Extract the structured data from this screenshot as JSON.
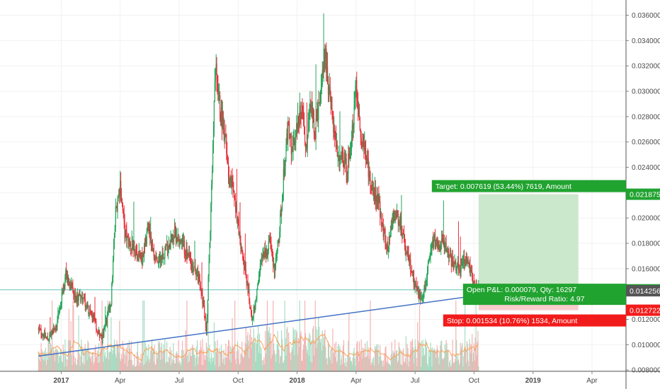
{
  "chart_data": {
    "type": "candlestick",
    "y_ticks": [
      "0.036000",
      "0.034000",
      "0.032000",
      "0.030000",
      "0.028000",
      "0.026000",
      "0.024000",
      "0.022000",
      "0.020000",
      "0.018000",
      "0.016000",
      "0.014000",
      "0.012000",
      "0.010000",
      "0.008000"
    ],
    "ylim": [
      0.0079,
      0.0372
    ],
    "x_ticks": [
      {
        "label": "2017",
        "bold": true,
        "t": 0
      },
      {
        "label": "Apr",
        "bold": false,
        "t": 13
      },
      {
        "label": "Jul",
        "bold": false,
        "t": 26
      },
      {
        "label": "Oct",
        "bold": false,
        "t": 39
      },
      {
        "label": "2018",
        "bold": true,
        "t": 52
      },
      {
        "label": "Apr",
        "bold": false,
        "t": 65
      },
      {
        "label": "Jul",
        "bold": false,
        "t": 78
      },
      {
        "label": "Oct",
        "bold": false,
        "t": 91
      },
      {
        "label": "2019",
        "bold": true,
        "t": 104
      },
      {
        "label": "Apr",
        "bold": false,
        "t": 117
      }
    ],
    "t_range": [
      -6,
      122
    ],
    "key_points": [
      [
        -5,
        0.0112
      ],
      [
        -3,
        0.0104
      ],
      [
        -1,
        0.0114
      ],
      [
        1,
        0.0155
      ],
      [
        3,
        0.0138
      ],
      [
        5,
        0.0136
      ],
      [
        7,
        0.012
      ],
      [
        9,
        0.0104
      ],
      [
        11,
        0.0135
      ],
      [
        12,
        0.0205
      ],
      [
        13,
        0.0228
      ],
      [
        14,
        0.0188
      ],
      [
        16,
        0.0172
      ],
      [
        18,
        0.0168
      ],
      [
        19,
        0.019
      ],
      [
        21,
        0.0165
      ],
      [
        23,
        0.0175
      ],
      [
        25,
        0.0188
      ],
      [
        27,
        0.0178
      ],
      [
        28,
        0.0168
      ],
      [
        30,
        0.0155
      ],
      [
        31,
        0.014
      ],
      [
        32,
        0.0112
      ],
      [
        33,
        0.0205
      ],
      [
        34,
        0.0318
      ],
      [
        35,
        0.0285
      ],
      [
        36,
        0.027
      ],
      [
        37,
        0.0232
      ],
      [
        38,
        0.022
      ],
      [
        39,
        0.0195
      ],
      [
        40,
        0.017
      ],
      [
        41,
        0.0148
      ],
      [
        42,
        0.012
      ],
      [
        43,
        0.0135
      ],
      [
        44,
        0.0165
      ],
      [
        46,
        0.018
      ],
      [
        47,
        0.0158
      ],
      [
        48,
        0.0185
      ],
      [
        49,
        0.0232
      ],
      [
        50,
        0.0272
      ],
      [
        51,
        0.025
      ],
      [
        52,
        0.0275
      ],
      [
        53,
        0.0285
      ],
      [
        54,
        0.0258
      ],
      [
        55,
        0.0288
      ],
      [
        56,
        0.027
      ],
      [
        57,
        0.029
      ],
      [
        58,
        0.0335
      ],
      [
        59,
        0.03
      ],
      [
        60,
        0.027
      ],
      [
        61,
        0.0245
      ],
      [
        62,
        0.025
      ],
      [
        63,
        0.0238
      ],
      [
        64,
        0.0265
      ],
      [
        65,
        0.0305
      ],
      [
        66,
        0.0268
      ],
      [
        67,
        0.025
      ],
      [
        68,
        0.0232
      ],
      [
        69,
        0.0222
      ],
      [
        70,
        0.021
      ],
      [
        71,
        0.019
      ],
      [
        72,
        0.0175
      ],
      [
        73,
        0.0195
      ],
      [
        74,
        0.0205
      ],
      [
        75,
        0.019
      ],
      [
        76,
        0.0172
      ],
      [
        77,
        0.0162
      ],
      [
        78,
        0.0148
      ],
      [
        79,
        0.0138
      ],
      [
        80,
        0.0142
      ],
      [
        81,
        0.0162
      ],
      [
        82,
        0.0182
      ],
      [
        83,
        0.0178
      ],
      [
        84,
        0.018
      ],
      [
        85,
        0.0175
      ],
      [
        86,
        0.0165
      ],
      [
        87,
        0.0162
      ],
      [
        88,
        0.016
      ],
      [
        89,
        0.017
      ],
      [
        90,
        0.016
      ],
      [
        91,
        0.0145
      ],
      [
        92,
        0.0143
      ]
    ],
    "trendline": {
      "from": [
        -5,
        0.0091
      ],
      "to": [
        92,
        0.0139
      ],
      "color": "#4472c4"
    },
    "current_price": {
      "value": 0.014335,
      "label": "0.014335",
      "color": "#26a69a"
    },
    "entry_price": {
      "value": 0.014256,
      "label": "0.014256"
    },
    "position": {
      "type": "long",
      "t_start": 92,
      "t_end": 114,
      "entry": 0.014256,
      "target": 0.021875,
      "stop": 0.012722,
      "target_price_label": "0.021875",
      "stop_price_label": "0.012722",
      "target_text": "Target: 0.007619 (53.44%) 7619, Amount",
      "pnl_text": "Open P&L: 0.000079, Qty: 16297",
      "rr_text": "Risk/Reward Ratio: 4.97",
      "stop_text": "Stop: 0.001534 (10.76%) 1534, Amount"
    },
    "colors": {
      "up": "#26a65b",
      "down": "#e8323c",
      "volume_up": "#a8dcc2",
      "volume_down": "#f4b4b4",
      "volume_ma": "#f7a35c",
      "target_fill": "#c8e6c9",
      "stop_fill": "#f9c9c9",
      "label_green": "#21a330",
      "label_red": "#f21b1b",
      "axis_text": "#4a4a4a"
    }
  }
}
